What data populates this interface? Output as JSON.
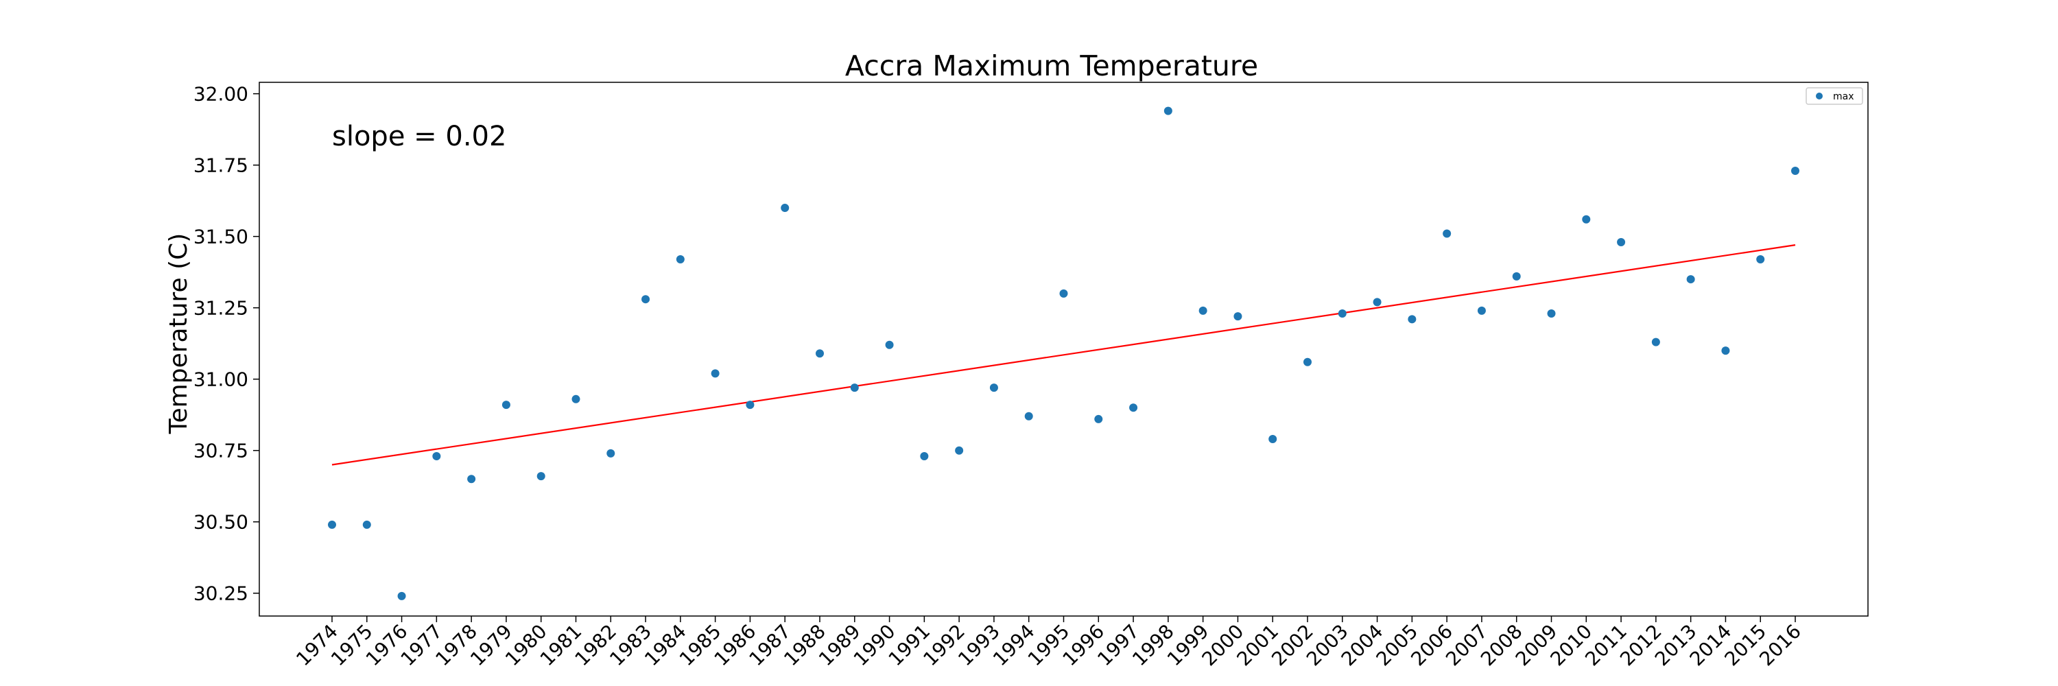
{
  "chart_data": {
    "type": "scatter",
    "title": "Accra Maximum Temperature",
    "xlabel": "",
    "ylabel": "Temperature (C)",
    "annotation": "slope = 0.02",
    "legend": {
      "placement": "top-right",
      "entries": [
        "max"
      ]
    },
    "grid": false,
    "x": [
      1974,
      1975,
      1976,
      1977,
      1978,
      1979,
      1980,
      1981,
      1982,
      1983,
      1984,
      1985,
      1986,
      1987,
      1988,
      1989,
      1990,
      1991,
      1992,
      1993,
      1994,
      1995,
      1996,
      1997,
      1998,
      1999,
      2000,
      2001,
      2002,
      2003,
      2004,
      2005,
      2006,
      2007,
      2008,
      2009,
      2010,
      2011,
      2012,
      2013,
      2014,
      2015,
      2016
    ],
    "xticks": [
      "1974",
      "1975",
      "1976",
      "1977",
      "1978",
      "1979",
      "1980",
      "1981",
      "1982",
      "1983",
      "1984",
      "1985",
      "1986",
      "1987",
      "1988",
      "1989",
      "1990",
      "1991",
      "1992",
      "1993",
      "1994",
      "1995",
      "1996",
      "1997",
      "1998",
      "1999",
      "2000",
      "2001",
      "2002",
      "2003",
      "2004",
      "2005",
      "2006",
      "2007",
      "2008",
      "2009",
      "2010",
      "2011",
      "2012",
      "2013",
      "2014",
      "2015",
      "2016"
    ],
    "ylim": [
      30.17,
      32.04
    ],
    "yticks": [
      "30.25",
      "30.50",
      "30.75",
      "31.00",
      "31.25",
      "31.50",
      "31.75",
      "32.00"
    ],
    "series": [
      {
        "name": "max",
        "type": "scatter",
        "color": "#1f77b4",
        "values": [
          30.49,
          30.49,
          30.24,
          30.73,
          30.65,
          30.91,
          30.66,
          30.93,
          30.74,
          31.28,
          31.42,
          31.02,
          30.91,
          31.6,
          31.09,
          30.97,
          31.12,
          30.73,
          30.75,
          30.97,
          30.87,
          31.3,
          30.86,
          30.9,
          31.94,
          31.24,
          31.22,
          30.79,
          31.06,
          31.23,
          31.27,
          31.21,
          31.51,
          31.24,
          31.36,
          31.23,
          31.56,
          31.48,
          31.13,
          31.35,
          31.1,
          31.42,
          31.73
        ]
      },
      {
        "type": "line",
        "color": "#ff0000",
        "x": [
          1974,
          2016
        ],
        "values": [
          30.7,
          31.47
        ]
      }
    ]
  }
}
